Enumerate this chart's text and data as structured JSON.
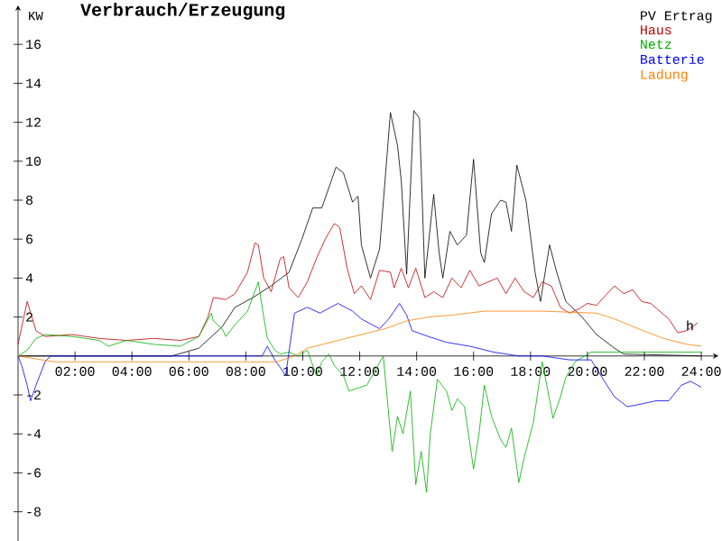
{
  "chart_data": {
    "type": "line",
    "title": "Verbrauch/Erzeugung",
    "ylabel": "KW",
    "xlim": [
      0,
      24.6
    ],
    "ylim": [
      -9.5,
      18
    ],
    "xticks": [
      {
        "value": 2,
        "label": "02:00"
      },
      {
        "value": 4,
        "label": "04:00"
      },
      {
        "value": 6,
        "label": "06:00"
      },
      {
        "value": 8,
        "label": "08:00"
      },
      {
        "value": 10,
        "label": "10:00"
      },
      {
        "value": 12,
        "label": "12:00"
      },
      {
        "value": 14,
        "label": "14:00"
      },
      {
        "value": 16,
        "label": "16:00"
      },
      {
        "value": 18,
        "label": "18:00"
      },
      {
        "value": 20,
        "label": "20:00"
      },
      {
        "value": 22,
        "label": "22:00"
      },
      {
        "value": 24,
        "label": "24:00"
      }
    ],
    "yticks": [
      -8,
      -6,
      -4,
      -2,
      2,
      4,
      6,
      8,
      10,
      12,
      14,
      16
    ],
    "grid": false,
    "legend": "top right",
    "marker": "none",
    "line_style": "solid",
    "annotations": [
      {
        "text": "h",
        "x": 23.6,
        "y": 1.3
      }
    ],
    "series": [
      {
        "name": "PV Ertrag",
        "color": "#000000",
        "x": [
          0,
          5.4,
          6.35,
          7.17,
          7.62,
          8.0,
          8.25,
          8.89,
          9.52,
          9.97,
          10.35,
          10.67,
          11.17,
          11.43,
          11.75,
          11.94,
          12.06,
          12.38,
          12.7,
          13.08,
          13.33,
          13.46,
          13.65,
          13.9,
          14.1,
          14.29,
          14.6,
          14.79,
          14.92,
          15.17,
          15.43,
          15.75,
          16.0,
          16.25,
          16.38,
          16.63,
          16.95,
          17.14,
          17.33,
          17.52,
          17.84,
          18.16,
          18.35,
          18.67,
          18.92,
          19.24,
          19.81,
          20.32,
          20.95,
          21.27,
          24
        ],
        "values": [
          0,
          0,
          0.4,
          1.5,
          2.5,
          2.8,
          3.0,
          3.6,
          4.3,
          6.0,
          7.6,
          7.6,
          9.7,
          9.4,
          7.9,
          8.2,
          5.7,
          4.0,
          5.5,
          12.5,
          10.8,
          9.0,
          4.2,
          12.6,
          12.2,
          4.0,
          8.3,
          5.3,
          4.0,
          6.4,
          5.7,
          6.2,
          10.1,
          5.3,
          4.8,
          7.3,
          8.0,
          7.9,
          6.4,
          9.8,
          8.0,
          4.3,
          2.8,
          5.7,
          4.3,
          2.8,
          2.0,
          1.1,
          0.4,
          0.1,
          0
        ]
      },
      {
        "name": "Haus",
        "color": "#c00000",
        "x": [
          0,
          0.32,
          0.63,
          0.95,
          1.9,
          2.86,
          3.81,
          4.76,
          5.71,
          6.35,
          6.67,
          6.86,
          7.3,
          7.62,
          8.06,
          8.32,
          8.44,
          8.63,
          8.89,
          9.21,
          9.33,
          9.52,
          9.84,
          10.16,
          10.48,
          10.79,
          11.11,
          11.3,
          11.56,
          11.81,
          12.06,
          12.38,
          12.7,
          13.08,
          13.21,
          13.46,
          13.71,
          13.97,
          14.29,
          14.6,
          14.92,
          15.24,
          15.56,
          15.87,
          16.19,
          16.51,
          16.83,
          17.14,
          17.46,
          17.78,
          18.1,
          18.41,
          18.73,
          19.05,
          19.37,
          19.68,
          20.0,
          20.32,
          20.63,
          20.95,
          21.27,
          21.59,
          21.9,
          22.22,
          22.54,
          22.86,
          23.17,
          23.49,
          23.87
        ],
        "values": [
          0.6,
          2.8,
          1.3,
          1.0,
          1.1,
          0.9,
          0.8,
          0.9,
          0.8,
          1.0,
          2.0,
          3.0,
          2.9,
          3.2,
          4.3,
          5.8,
          5.7,
          4.0,
          3.3,
          5.0,
          5.1,
          3.5,
          3.0,
          3.8,
          5.0,
          6.0,
          6.8,
          6.6,
          4.5,
          3.2,
          3.6,
          2.9,
          4.4,
          4.3,
          3.5,
          4.5,
          3.5,
          4.5,
          3.0,
          3.3,
          3.0,
          4.0,
          3.5,
          4.4,
          3.6,
          3.8,
          4.0,
          3.2,
          4.0,
          3.3,
          3.0,
          3.8,
          3.6,
          2.5,
          2.2,
          2.4,
          2.7,
          2.6,
          3.1,
          3.6,
          3.2,
          3.4,
          2.8,
          2.7,
          2.3,
          1.9,
          1.2,
          1.3,
          1.7
        ]
      },
      {
        "name": "Netz",
        "color": "#00b000",
        "x": [
          0,
          0.32,
          0.63,
          0.95,
          1.9,
          2.86,
          3.17,
          3.81,
          4.76,
          5.71,
          6.35,
          6.79,
          6.86,
          7.17,
          7.3,
          7.62,
          8.06,
          8.44,
          8.63,
          8.76,
          9.02,
          9.21,
          9.52,
          9.84,
          10.16,
          10.48,
          10.67,
          10.92,
          11.11,
          11.43,
          11.62,
          12.25,
          12.83,
          13.14,
          13.33,
          13.52,
          13.78,
          13.97,
          14.16,
          14.35,
          14.48,
          14.73,
          15.05,
          15.24,
          15.43,
          15.68,
          16.0,
          16.19,
          16.38,
          16.63,
          16.95,
          17.14,
          17.33,
          17.59,
          17.78,
          18.1,
          18.41,
          18.6,
          18.79,
          19.05,
          19.24,
          19.56,
          20.13,
          24
        ],
        "values": [
          0,
          0.3,
          0.9,
          1.1,
          1.0,
          0.8,
          0.5,
          0.8,
          0.6,
          0.5,
          1.0,
          2.2,
          1.8,
          1.4,
          1.0,
          1.6,
          2.3,
          3.8,
          2.0,
          0.9,
          0.3,
          0.1,
          0.2,
          0.0,
          0.3,
          -1.0,
          -0.3,
          0.1,
          -0.5,
          -1.0,
          -1.8,
          -1.5,
          0,
          -4.9,
          -3.1,
          -4.0,
          -1.8,
          -6.6,
          -4.9,
          -7.0,
          -4.0,
          -1.2,
          -1.8,
          -2.8,
          -2.2,
          -2.6,
          -5.8,
          -4.0,
          -1.5,
          -3.1,
          -4.3,
          -4.7,
          -3.7,
          -6.5,
          -5.2,
          -3.4,
          -0.3,
          -1.7,
          -3.2,
          -2.1,
          -1.1,
          -0.3,
          0.2,
          0.2
        ]
      },
      {
        "name": "Batterie",
        "color": "#0000ff",
        "x": [
          0,
          0.13,
          0.32,
          0.44,
          0.63,
          0.95,
          1.14,
          8.57,
          8.76,
          9.02,
          9.4,
          9.71,
          10.16,
          10.6,
          11.24,
          11.75,
          12.06,
          12.7,
          13.02,
          13.4,
          13.65,
          13.84,
          14.41,
          15.05,
          15.87,
          16.7,
          17.59,
          18.41,
          19.37,
          20.13,
          20.51,
          20.95,
          21.4,
          21.78,
          22.41,
          22.86,
          23.3,
          23.62,
          24
        ],
        "values": [
          0,
          -0.5,
          -1.5,
          -2.3,
          -1.5,
          -0.3,
          0,
          0,
          0.5,
          -0.2,
          -1.0,
          2.2,
          2.5,
          2.2,
          2.7,
          2.3,
          1.9,
          1.4,
          1.9,
          2.7,
          2.1,
          1.3,
          1.0,
          0.7,
          0.5,
          0.2,
          0,
          0,
          -0.2,
          -0.2,
          -1.1,
          -2.1,
          -2.6,
          -2.5,
          -2.3,
          -2.3,
          -1.5,
          -1.3,
          -1.6
        ]
      },
      {
        "name": "Ladung",
        "color": "#ff8000",
        "x": [
          0,
          1.27,
          9.08,
          9.71,
          10.16,
          12.06,
          12.89,
          13.65,
          14.41,
          15.24,
          16.38,
          18.41,
          20.32,
          20.95,
          21.78,
          22.67,
          23.49,
          24
        ],
        "values": [
          0,
          -0.3,
          -0.3,
          0,
          0.4,
          1.1,
          1.4,
          1.8,
          2.0,
          2.1,
          2.3,
          2.3,
          2.2,
          1.9,
          1.4,
          0.9,
          0.6,
          0.5
        ]
      }
    ]
  }
}
